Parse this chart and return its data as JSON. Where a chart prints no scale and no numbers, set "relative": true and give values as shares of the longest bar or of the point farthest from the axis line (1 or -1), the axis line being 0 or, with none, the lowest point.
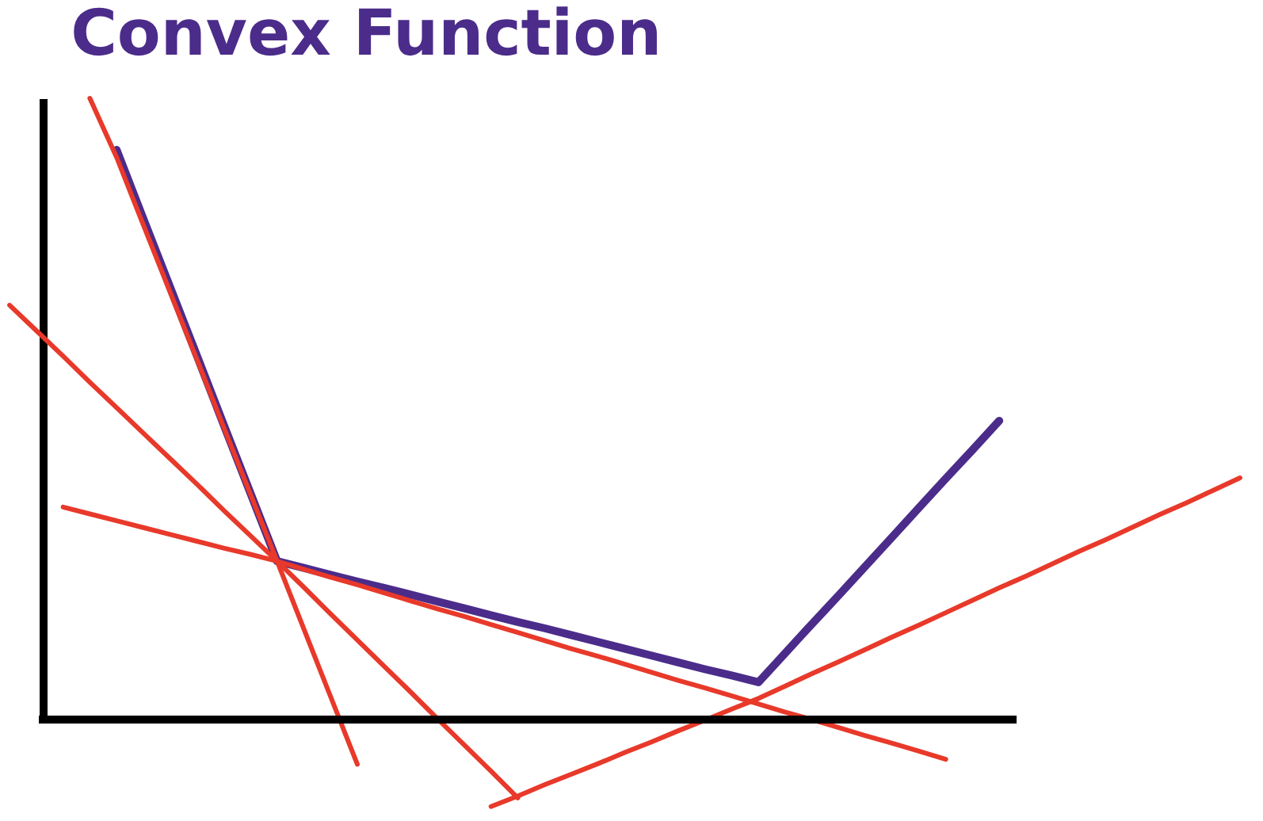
{
  "chart_data": {
    "type": "line",
    "title": "Convex Function",
    "relative": true,
    "line_style": "solid",
    "ref_lines": [
      {
        "axis": "y",
        "value": 0,
        "color": "#000000"
      }
    ],
    "categories": [
      null,
      null,
      null,
      null,
      null,
      null,
      null,
      null,
      null,
      null,
      null,
      null,
      null,
      null,
      null,
      null,
      null,
      null,
      null,
      null,
      null,
      null,
      null,
      null,
      null,
      null,
      null,
      null,
      null,
      null,
      null,
      null,
      null,
      null,
      null,
      null,
      null,
      null,
      null,
      null,
      null,
      null,
      null,
      null,
      null,
      null,
      null
    ],
    "series": [
      {
        "color": "#4b2c8a",
        "values": [
          null,
          null,
          null,
          null,
          0.917,
          0.806,
          0.696,
          0.586,
          0.475,
          0.365,
          0.255,
          0.244,
          0.233,
          0.222,
          0.212,
          0.201,
          0.19,
          0.179,
          0.168,
          0.157,
          0.147,
          0.136,
          0.125,
          0.114,
          0.103,
          0.092,
          0.081,
          0.071,
          0.06,
          0.107,
          0.154,
          0.2,
          0.247,
          0.294,
          0.341,
          0.388,
          0.434,
          0.481,
          null,
          null,
          null,
          null,
          null,
          null,
          null,
          null,
          null
        ]
      },
      {
        "color": "#e8392a",
        "values": [
          null,
          null,
          null,
          1.0,
          0.905,
          0.796,
          0.688,
          0.58,
          0.471,
          0.363,
          0.255,
          0.146,
          0.037,
          -0.072,
          null,
          null,
          null,
          null,
          null,
          null,
          null,
          null,
          null,
          null,
          null,
          null,
          null,
          null,
          null,
          null,
          null,
          null,
          null,
          null,
          null,
          null,
          null,
          null,
          null,
          null,
          null,
          null,
          null,
          null,
          null,
          null,
          null
        ]
      },
      {
        "color": "#e8392a",
        "values": [
          0.667,
          0.626,
          0.585,
          0.543,
          0.502,
          0.461,
          0.42,
          0.379,
          0.337,
          0.296,
          0.255,
          0.213,
          0.17,
          0.128,
          0.086,
          0.044,
          0.001,
          -0.041,
          -0.083,
          -0.126,
          null,
          null,
          null,
          null,
          null,
          null,
          null,
          null,
          null,
          null,
          null,
          null,
          null,
          null,
          null,
          null,
          null,
          null,
          null,
          null,
          null,
          null,
          null,
          null,
          null,
          null,
          null
        ]
      },
      {
        "color": "#e8392a",
        "values": [
          null,
          null,
          0.342,
          0.331,
          0.32,
          0.309,
          0.298,
          0.287,
          0.276,
          0.266,
          0.255,
          0.242,
          0.229,
          0.217,
          0.204,
          0.191,
          0.178,
          0.166,
          0.153,
          0.14,
          0.127,
          0.114,
          0.102,
          0.089,
          0.076,
          0.063,
          0.051,
          0.038,
          0.025,
          0.012,
          0.0,
          -0.013,
          -0.026,
          -0.038,
          -0.051,
          -0.064,
          null,
          null,
          null,
          null,
          null,
          null,
          null,
          null,
          null,
          null,
          null
        ]
      },
      {
        "color": "#e8392a",
        "values": [
          null,
          null,
          null,
          null,
          null,
          null,
          null,
          null,
          null,
          null,
          null,
          null,
          null,
          null,
          null,
          null,
          null,
          null,
          -0.14,
          -0.123,
          -0.105,
          -0.088,
          -0.071,
          -0.053,
          -0.036,
          -0.018,
          -0.001,
          0.017,
          0.034,
          0.054,
          0.074,
          0.093,
          0.113,
          0.133,
          0.152,
          0.172,
          0.192,
          0.212,
          0.231,
          0.251,
          0.271,
          0.29,
          0.31,
          0.33,
          0.349,
          0.369,
          0.389
        ]
      }
    ]
  }
}
